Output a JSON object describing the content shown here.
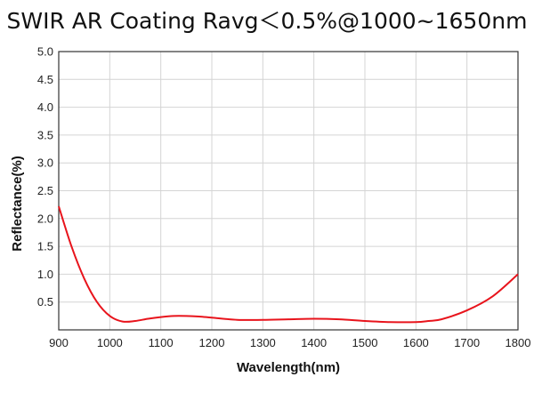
{
  "chart_data": {
    "type": "line",
    "title": "SWIR AR Coating Ravg＜0.5%@1000~1650nm",
    "xlabel": "Wavelength(nm)",
    "ylabel": "Reflectance(%)",
    "xlim": [
      900,
      1800
    ],
    "ylim": [
      0,
      5.0
    ],
    "x_ticks": [
      900,
      1000,
      1100,
      1200,
      1300,
      1400,
      1500,
      1600,
      1700,
      1800
    ],
    "y_ticks": [
      0.5,
      1.0,
      1.5,
      2.0,
      2.5,
      3.0,
      3.5,
      4.0,
      4.5,
      5.0
    ],
    "y_tick_labels": [
      "0.5",
      "1.0",
      "1.5",
      "2.0",
      "2.5",
      "3.0",
      "3.5",
      "4.0",
      "4.5",
      "5.0"
    ],
    "grid": true,
    "series_color": "#e8141c",
    "series": [
      {
        "x": [
          900,
          925,
          950,
          975,
          1000,
          1025,
          1050,
          1075,
          1100,
          1125,
          1150,
          1175,
          1200,
          1250,
          1300,
          1350,
          1400,
          1450,
          1500,
          1550,
          1600,
          1625,
          1650,
          1700,
          1750,
          1800
        ],
        "y": [
          2.22,
          1.5,
          0.92,
          0.5,
          0.25,
          0.15,
          0.16,
          0.2,
          0.23,
          0.25,
          0.25,
          0.24,
          0.22,
          0.18,
          0.18,
          0.19,
          0.2,
          0.19,
          0.16,
          0.14,
          0.14,
          0.16,
          0.19,
          0.35,
          0.6,
          1.0
        ]
      }
    ]
  }
}
